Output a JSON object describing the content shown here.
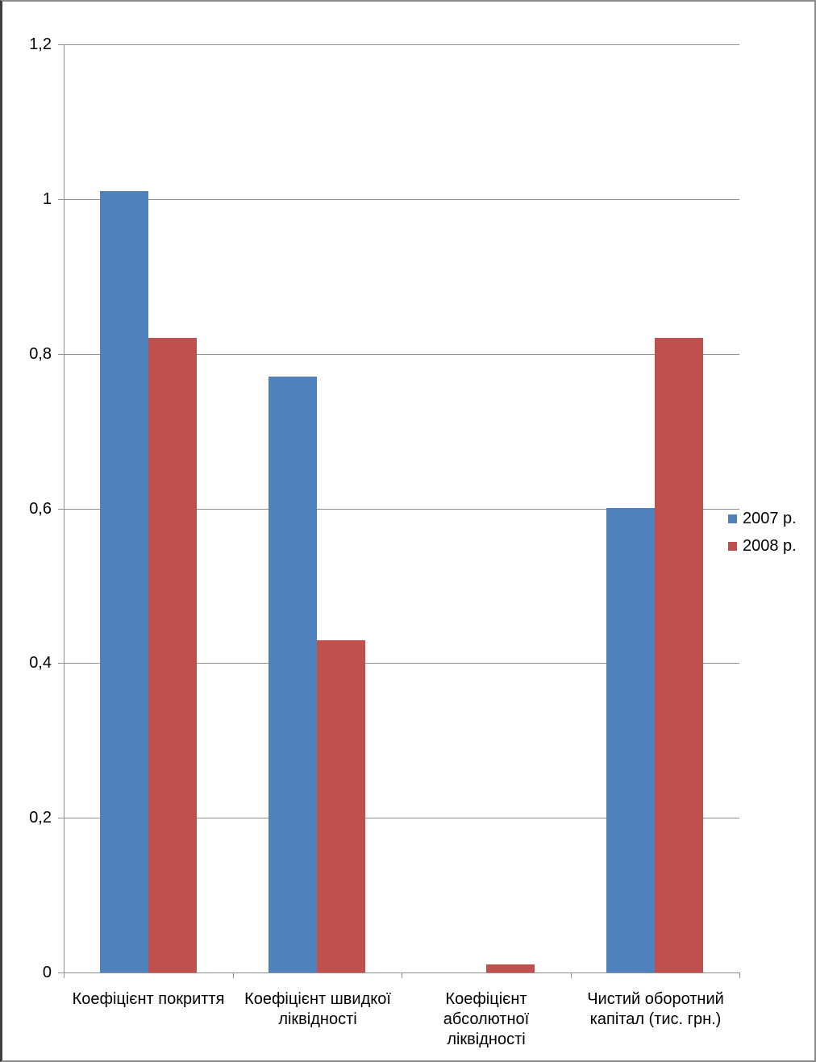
{
  "chart_data": {
    "type": "bar",
    "title": "",
    "xlabel": "",
    "ylabel": "",
    "categories": [
      "Коефіцієнт покриття",
      "Коефіцієнт швидкої ліквідності",
      "Коефіцієнт абсолютної ліквідності",
      "Чистий оборотний капітал (тис. грн.)"
    ],
    "category_label_lines": [
      [
        "Коефіцієнт покриття"
      ],
      [
        "Коефіцієнт швидкої",
        "ліквідності"
      ],
      [
        "Коефіцієнт",
        "абсолютної",
        "ліквідності"
      ],
      [
        "Чистий оборотний",
        "капітал (тис. грн.)"
      ]
    ],
    "series": [
      {
        "name": "2007 р.",
        "color": "#4F81BD",
        "values": [
          1.01,
          0.77,
          0,
          0.6
        ]
      },
      {
        "name": "2008 р.",
        "color": "#C0504D",
        "values": [
          0.82,
          0.43,
          0.01,
          0.82
        ]
      }
    ],
    "ylim": [
      0,
      1.2
    ],
    "yticks": [
      {
        "value": 0,
        "label": "0"
      },
      {
        "value": 0.2,
        "label": "0,2"
      },
      {
        "value": 0.4,
        "label": "0,4"
      },
      {
        "value": 0.6,
        "label": "0,6"
      },
      {
        "value": 0.8,
        "label": "0,8"
      },
      {
        "value": 1,
        "label": "1"
      },
      {
        "value": 1.2,
        "label": "1,2"
      }
    ],
    "decimal_separator": ",",
    "grid": true,
    "legend_position": "right",
    "colors": {
      "series_2007": "#4F81BD",
      "series_2008": "#C0504D",
      "gridline": "#8F8F8F",
      "axis": "#8F8F8F",
      "text": "#000000",
      "background": "#FFFFFF",
      "border": "#8C8C8C",
      "border_left": "#3F3F3F"
    }
  }
}
